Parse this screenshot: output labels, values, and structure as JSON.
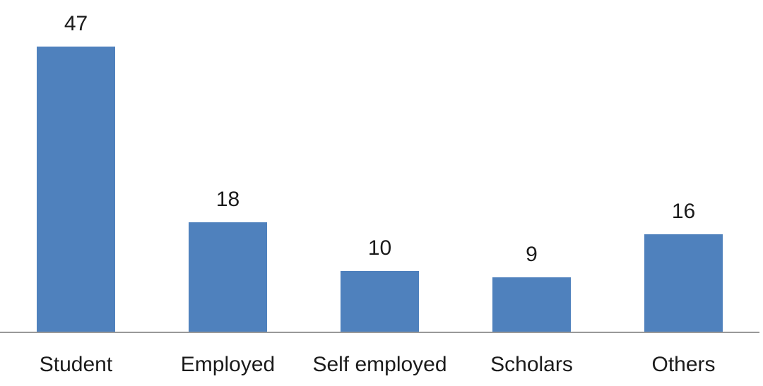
{
  "page": {
    "background": "#ffffff"
  },
  "chart_data": {
    "type": "bar",
    "categories": [
      "Student",
      "Employed",
      "Self employed",
      "Scholars",
      "Others"
    ],
    "values": [
      47,
      18,
      10,
      9,
      16
    ],
    "data_labels": [
      "47",
      "18",
      "10",
      "9",
      "16"
    ],
    "title": "",
    "xlabel": "",
    "ylabel": "",
    "ylim": [
      0,
      47
    ],
    "grid": false,
    "legend": false,
    "data_label_position": "outside-end",
    "bar_color": "#4F81BD",
    "axis_line_color": "#999999",
    "label_color": "#1b1b1b"
  }
}
